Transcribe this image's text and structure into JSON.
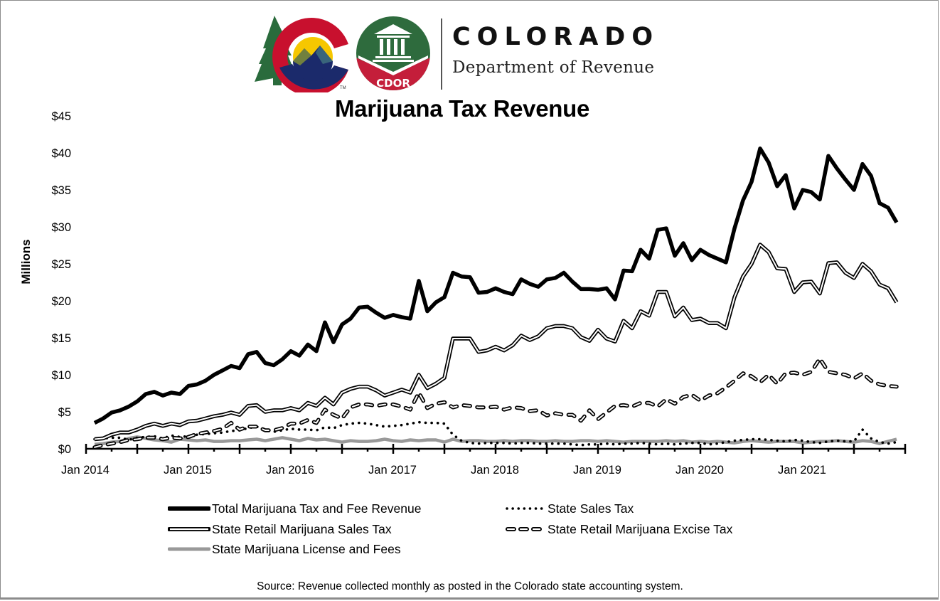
{
  "header": {
    "brand_name": "COLORADO",
    "brand_subtitle": "Department of Revenue",
    "cdor_badge": "CDOR",
    "tm_mark": "TM",
    "logo_icons": [
      "colorado-c-logo-icon",
      "cdor-capitol-logo-icon"
    ]
  },
  "colors": {
    "colorado_red": "#c8102e",
    "colorado_blue": "#1b2a6b",
    "colorado_gold": "#f6c700",
    "tree_green": "#2a6b3c",
    "cdor_green": "#2e6b3d",
    "cdor_red": "#c41e3a",
    "total_line": "#000000",
    "license_line": "#999999",
    "frame_border": "#8c8c8c"
  },
  "footer": {
    "source": "Source: Revenue collected monthly as posted in the Colorado state accounting system."
  },
  "chart_data": {
    "type": "line",
    "title": "Marijuana Tax Revenue",
    "xlabel": "",
    "ylabel": "Millions",
    "ylim": [
      0,
      45
    ],
    "yticks": [
      0,
      5,
      10,
      15,
      20,
      25,
      30,
      35,
      40,
      45
    ],
    "ytick_labels": [
      "$0",
      "$5",
      "$10",
      "$15",
      "$20",
      "$25",
      "$30",
      "$35",
      "$40",
      "$45"
    ],
    "xlim": [
      "2014-01",
      "2022-01"
    ],
    "xtick_labels": [
      "Jan 2014",
      "Jan 2015",
      "Jan 2016",
      "Jan 2017",
      "Jan 2018",
      "Jan 2019",
      "Jan 2020",
      "Jan 2021"
    ],
    "grid": false,
    "legend_position": "bottom",
    "x_start": "2014-02",
    "x_end": "2021-12",
    "x_step": "month",
    "series": [
      {
        "name": "Total Marijuana Tax and Fee Revenue",
        "style": "thick-solid-black",
        "values": [
          3.5,
          4.1,
          4.9,
          5.2,
          5.7,
          6.4,
          7.4,
          7.7,
          7.2,
          7.6,
          7.4,
          8.5,
          8.7,
          9.2,
          10.0,
          10.6,
          11.2,
          10.9,
          12.8,
          13.1,
          11.6,
          11.3,
          12.1,
          13.2,
          12.6,
          14.1,
          13.2,
          17.1,
          14.4,
          16.8,
          17.6,
          19.1,
          19.2,
          18.4,
          17.7,
          18.1,
          17.8,
          17.6,
          22.7,
          18.6,
          19.8,
          20.5,
          23.8,
          23.3,
          23.2,
          21.1,
          21.2,
          21.7,
          21.2,
          20.9,
          22.9,
          22.3,
          21.9,
          22.9,
          23.1,
          23.8,
          22.6,
          21.6,
          21.6,
          21.5,
          21.7,
          20.2,
          24.1,
          24.0,
          26.9,
          25.7,
          29.6,
          29.8,
          26.1,
          27.8,
          25.5,
          26.9,
          26.2,
          25.7,
          25.2,
          29.8,
          33.6,
          36.1,
          40.6,
          38.7,
          35.5,
          37.0,
          32.5,
          35.0,
          34.7,
          33.7,
          39.6,
          37.9,
          36.4,
          35.0,
          38.5,
          36.9,
          33.2,
          32.6,
          30.6
        ]
      },
      {
        "name": "State Sales Tax",
        "style": "dotted-black",
        "values": [
          1.3,
          1.4,
          1.5,
          1.5,
          1.2,
          1.5,
          1.6,
          1.7,
          1.4,
          1.8,
          1.6,
          1.7,
          1.9,
          2.0,
          2.1,
          2.2,
          2.4,
          2.5,
          2.8,
          3.0,
          2.6,
          2.3,
          2.5,
          2.7,
          2.6,
          2.6,
          2.5,
          2.9,
          2.8,
          3.2,
          3.4,
          3.5,
          3.4,
          3.2,
          3.0,
          3.1,
          3.2,
          3.4,
          3.6,
          3.5,
          3.5,
          3.4,
          1.9,
          1.1,
          0.8,
          0.7,
          0.8,
          0.8,
          0.8,
          0.7,
          0.8,
          0.8,
          0.7,
          0.7,
          0.7,
          0.7,
          0.6,
          0.5,
          0.6,
          0.6,
          0.7,
          0.6,
          0.7,
          0.7,
          0.8,
          0.7,
          0.6,
          0.7,
          0.6,
          0.7,
          0.8,
          0.8,
          0.6,
          0.7,
          0.9,
          1.1,
          1.2,
          1.3,
          1.3,
          1.2,
          1.1,
          1.0,
          1.2,
          1.1,
          0.9,
          0.8,
          1.0,
          1.1,
          1.0,
          1.0,
          2.6,
          1.4,
          0.9,
          0.7,
          0.9
        ]
      },
      {
        "name": "State Retail Marijuana Sales Tax",
        "style": "double-line-black",
        "values": [
          1.3,
          1.4,
          1.9,
          2.2,
          2.2,
          2.6,
          3.1,
          3.4,
          3.1,
          3.4,
          3.2,
          3.7,
          3.8,
          4.1,
          4.4,
          4.6,
          4.9,
          4.6,
          5.8,
          5.9,
          5.0,
          5.2,
          5.2,
          5.5,
          5.2,
          6.2,
          5.8,
          6.9,
          6.0,
          7.6,
          8.1,
          8.4,
          8.4,
          7.9,
          7.2,
          7.6,
          8.0,
          7.6,
          10.0,
          8.2,
          8.8,
          9.6,
          14.9,
          14.9,
          14.9,
          13.1,
          13.3,
          13.8,
          13.3,
          14.0,
          15.3,
          14.7,
          15.2,
          16.3,
          16.6,
          16.6,
          16.3,
          15.1,
          14.6,
          16.1,
          14.9,
          14.5,
          17.3,
          16.3,
          18.6,
          18.0,
          21.2,
          21.2,
          17.9,
          19.1,
          17.4,
          17.6,
          17.0,
          17.0,
          16.3,
          20.5,
          23.3,
          25.0,
          27.6,
          26.6,
          24.4,
          24.3,
          21.2,
          22.5,
          22.6,
          21.0,
          25.1,
          25.2,
          23.8,
          23.1,
          25.0,
          24.0,
          22.2,
          21.7,
          19.8
        ]
      },
      {
        "name": "State Retail Marijuana Excise Tax",
        "style": "dashed-outline-black",
        "values": [
          0.2,
          0.5,
          0.7,
          0.9,
          1.2,
          1.3,
          1.5,
          1.5,
          1.3,
          1.5,
          1.4,
          1.6,
          2.0,
          2.2,
          2.4,
          2.7,
          3.5,
          2.6,
          3.0,
          3.0,
          2.5,
          2.5,
          2.8,
          3.4,
          3.4,
          3.9,
          3.5,
          5.3,
          4.6,
          4.1,
          5.6,
          6.0,
          6.0,
          5.8,
          6.0,
          6.0,
          5.7,
          5.3,
          7.6,
          5.5,
          6.1,
          6.3,
          5.6,
          5.9,
          5.8,
          5.6,
          5.6,
          5.7,
          5.3,
          5.6,
          5.5,
          5.1,
          5.2,
          4.5,
          4.8,
          4.6,
          4.6,
          3.8,
          5.2,
          4.0,
          4.9,
          5.8,
          5.9,
          5.7,
          6.2,
          6.2,
          5.7,
          6.7,
          6.1,
          7.0,
          7.3,
          6.5,
          7.2,
          7.5,
          8.3,
          9.2,
          10.2,
          9.8,
          9.0,
          10.0,
          8.8,
          10.2,
          10.3,
          10.0,
          10.4,
          12.2,
          10.4,
          10.2,
          10.0,
          9.5,
          10.2,
          9.2,
          8.7,
          8.5,
          8.4
        ]
      },
      {
        "name": "State Marijuana License and Fees",
        "style": "thick-solid-gray",
        "values": [
          0.6,
          0.7,
          0.9,
          1.0,
          1.4,
          1.6,
          1.4,
          1.2,
          1.1,
          0.9,
          1.3,
          1.2,
          1.1,
          1.2,
          1.0,
          1.0,
          1.1,
          1.1,
          1.2,
          1.3,
          1.1,
          1.3,
          1.5,
          1.3,
          1.1,
          1.4,
          1.2,
          1.3,
          1.1,
          0.9,
          1.1,
          1.0,
          1.0,
          1.1,
          1.3,
          1.1,
          1.0,
          1.2,
          1.1,
          1.2,
          1.2,
          0.9,
          1.3,
          1.0,
          1.1,
          1.1,
          1.0,
          1.0,
          1.1,
          1.0,
          1.1,
          1.1,
          1.0,
          1.0,
          1.1,
          1.0,
          1.0,
          1.1,
          1.1,
          1.0,
          1.1,
          1.0,
          0.9,
          1.0,
          1.0,
          1.0,
          1.0,
          1.1,
          1.0,
          1.1,
          0.9,
          1.0,
          0.9,
          1.0,
          0.9,
          0.8,
          1.0,
          1.1,
          1.0,
          0.9,
          1.0,
          1.0,
          1.0,
          0.8,
          0.9,
          1.0,
          1.0,
          1.1,
          1.0,
          0.9,
          1.1,
          1.0,
          0.7,
          1.0,
          1.3
        ]
      }
    ]
  }
}
